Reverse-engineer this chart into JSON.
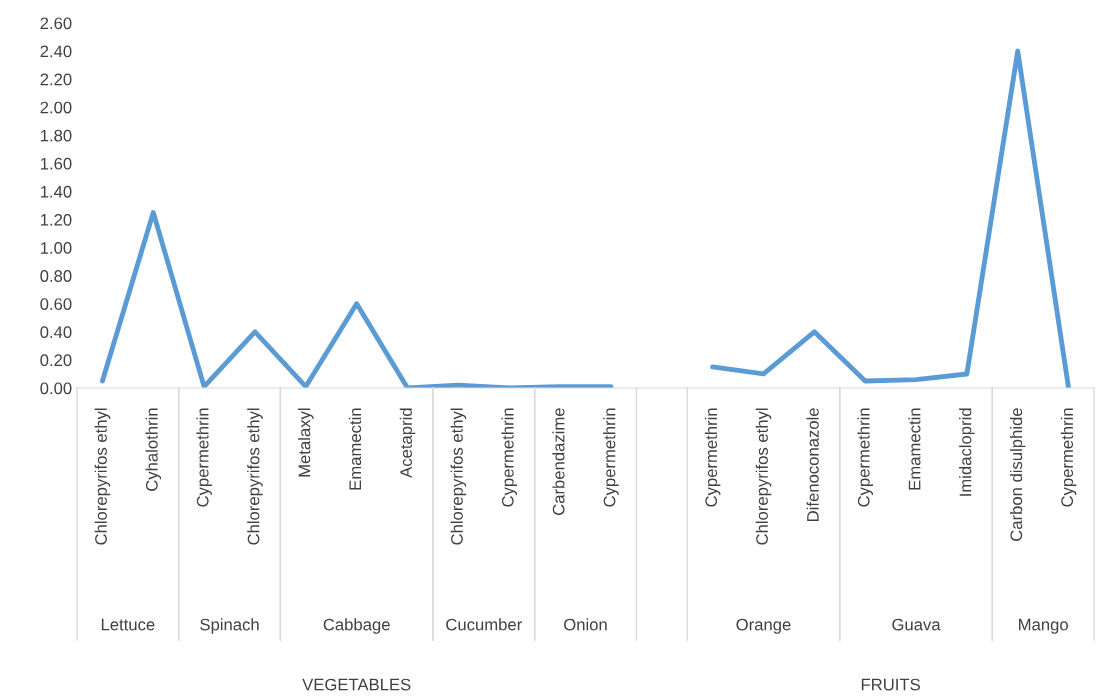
{
  "chart_data": {
    "type": "line",
    "categories": [
      "Chlorepyrifos ethyl",
      "Cyhalothrin",
      "Cypermethrin",
      "Chlorepyrifos ethyl",
      "Metalaxyl",
      "Emamectin",
      "Acetaprid",
      "Chlorepyrifos ethyl",
      "Cypermethrin",
      "Carbendazime",
      "Cypermethrin",
      null,
      "Cypermethrin",
      "Chlorepyrifos ethyl",
      "Difenoconazole",
      "Cypermethrin",
      "Emamectin",
      "Imidacloprid",
      "Carbon disulphide",
      "Cypermethrin"
    ],
    "series": [
      {
        "color": "#5b9bd5",
        "values": [
          0.05,
          1.25,
          0.01,
          0.4,
          0.01,
          0.6,
          0.0,
          0.02,
          0.0,
          0.01,
          0.01,
          null,
          0.15,
          0.1,
          0.4,
          0.05,
          0.06,
          0.1,
          2.4,
          0.0
        ]
      }
    ],
    "ylim": [
      0,
      2.6
    ],
    "yticks": [
      {
        "value": 0,
        "label": "0.00"
      },
      {
        "value": 0.2,
        "label": "0.20"
      },
      {
        "value": 0.4,
        "label": "0.40"
      },
      {
        "value": 0.6,
        "label": "0.60"
      },
      {
        "value": 0.8,
        "label": "0.80"
      },
      {
        "value": 1.0,
        "label": "1.00"
      },
      {
        "value": 1.2,
        "label": "1.20"
      },
      {
        "value": 1.4,
        "label": "1.40"
      },
      {
        "value": 1.6,
        "label": "1.60"
      },
      {
        "value": 1.8,
        "label": "1.80"
      },
      {
        "value": 2.0,
        "label": "2.00"
      },
      {
        "value": 2.2,
        "label": "2.20"
      },
      {
        "value": 2.4,
        "label": "2.40"
      },
      {
        "value": 2.6,
        "label": "2.60"
      }
    ],
    "grid": false,
    "marker": "none",
    "line_style": "solid",
    "annotations": [
      "Lettuce",
      "Spinach",
      "Cabbage",
      "Cucumber",
      "Onion",
      "Orange",
      "Guava",
      "Mango",
      "VEGETABLES",
      "FRUITS"
    ]
  }
}
